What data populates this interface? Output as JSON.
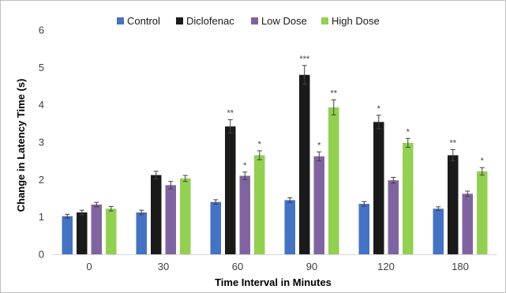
{
  "chart_data": {
    "type": "bar",
    "title": "",
    "xlabel": "Time Interval in Minutes",
    "ylabel": "Change in Latency Time (s)",
    "categories": [
      "0",
      "30",
      "60",
      "90",
      "120",
      "180"
    ],
    "ylim": [
      0,
      6
    ],
    "yticks": [
      0,
      1,
      2,
      3,
      4,
      5,
      6
    ],
    "grid": false,
    "legend": "top",
    "series": [
      {
        "name": "Control",
        "color": "#4472c4",
        "values": [
          1.02,
          1.12,
          1.4,
          1.45,
          1.35,
          1.22
        ],
        "errors": [
          0.05,
          0.06,
          0.06,
          0.06,
          0.06,
          0.05
        ],
        "significance": [
          "",
          "",
          "",
          "",
          "",
          ""
        ]
      },
      {
        "name": "Diclofenac",
        "color": "#1a1a1a",
        "values": [
          1.12,
          2.12,
          3.42,
          4.8,
          3.54,
          2.65
        ],
        "errors": [
          0.06,
          0.1,
          0.18,
          0.25,
          0.18,
          0.15
        ],
        "significance": [
          "",
          "",
          "**",
          "***",
          "*",
          "**"
        ]
      },
      {
        "name": "Low Dose",
        "color": "#8064a2",
        "values": [
          1.33,
          1.85,
          2.1,
          2.62,
          1.98,
          1.62
        ],
        "errors": [
          0.06,
          0.1,
          0.1,
          0.12,
          0.08,
          0.07
        ],
        "significance": [
          "",
          "",
          "*",
          "*",
          "",
          ""
        ]
      },
      {
        "name": "High Dose",
        "color": "#92d050",
        "values": [
          1.22,
          2.03,
          2.65,
          3.93,
          2.98,
          2.22
        ],
        "errors": [
          0.06,
          0.08,
          0.12,
          0.2,
          0.12,
          0.1
        ],
        "significance": [
          "",
          "",
          "*",
          "**",
          "*",
          "*"
        ]
      }
    ]
  }
}
